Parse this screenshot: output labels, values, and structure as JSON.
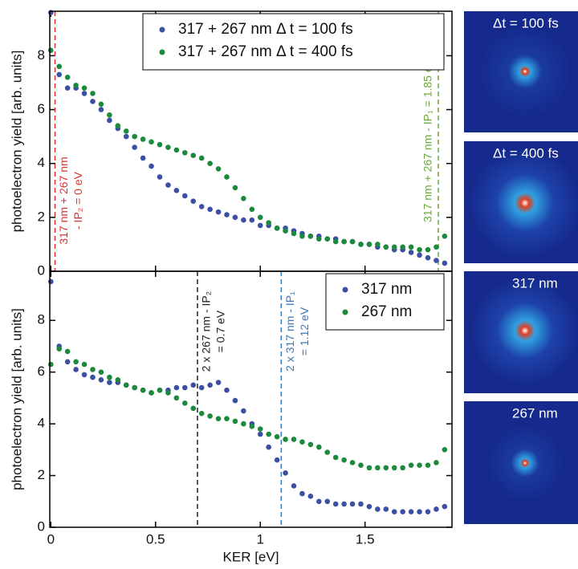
{
  "chart_data": [
    {
      "type": "scatter",
      "ylabel": "photoelectron yield [arb. units]",
      "xlim": [
        -0.005,
        1.915
      ],
      "ylim": [
        0,
        9.65
      ],
      "xticks": [
        0,
        0.5,
        1,
        1.5
      ],
      "yticks": [
        0,
        2,
        4,
        6,
        8
      ],
      "show_xtick_labels": false,
      "legend": "top-right",
      "x": [
        0,
        0.04,
        0.08,
        0.12,
        0.16,
        0.2,
        0.24,
        0.28,
        0.32,
        0.36,
        0.4,
        0.44,
        0.48,
        0.52,
        0.56,
        0.6,
        0.64,
        0.68,
        0.72,
        0.76,
        0.8,
        0.84,
        0.88,
        0.92,
        0.96,
        1.0,
        1.04,
        1.08,
        1.12,
        1.16,
        1.2,
        1.24,
        1.28,
        1.32,
        1.36,
        1.4,
        1.44,
        1.48,
        1.52,
        1.56,
        1.6,
        1.64,
        1.68,
        1.72,
        1.76,
        1.8,
        1.84,
        1.88
      ],
      "series": [
        {
          "name": "317 + 267 nm Δ t = 100 fs",
          "color": "#3b4fa3",
          "values": [
            9.6,
            7.3,
            6.8,
            6.8,
            6.6,
            6.3,
            6.0,
            5.6,
            5.3,
            5.0,
            4.6,
            4.2,
            3.9,
            3.5,
            3.2,
            3.0,
            2.8,
            2.6,
            2.4,
            2.3,
            2.2,
            2.1,
            2.0,
            1.9,
            1.9,
            1.7,
            1.7,
            1.6,
            1.6,
            1.5,
            1.4,
            1.3,
            1.3,
            1.2,
            1.2,
            1.1,
            1.1,
            1.0,
            1.0,
            0.9,
            0.9,
            0.8,
            0.8,
            0.7,
            0.6,
            0.5,
            0.4,
            0.3
          ]
        },
        {
          "name": "317 + 267 nm Δ t = 400 fs",
          "color": "#1c8a3c",
          "values": [
            8.2,
            7.6,
            7.2,
            6.9,
            6.8,
            6.6,
            6.2,
            5.8,
            5.4,
            5.2,
            5.0,
            4.9,
            4.8,
            4.7,
            4.6,
            4.5,
            4.4,
            4.3,
            4.2,
            4.0,
            3.8,
            3.5,
            3.1,
            2.7,
            2.3,
            2.0,
            1.8,
            1.6,
            1.5,
            1.4,
            1.3,
            1.3,
            1.2,
            1.2,
            1.1,
            1.1,
            1.1,
            1.0,
            1.0,
            1.0,
            0.9,
            0.9,
            0.9,
            0.9,
            0.8,
            0.8,
            0.9,
            1.3
          ]
        }
      ],
      "vlines": [
        {
          "x": 0.02,
          "color": "#e0302f",
          "side": "right",
          "label": [
            "317 nm + 267 nm",
            "- IP₂ = 0 eV"
          ]
        },
        {
          "x": 1.85,
          "color": "#6aa83a",
          "side": "left",
          "label": [
            "317 nm + 267 nm - IP₁ = 1.85 eV"
          ]
        }
      ]
    },
    {
      "type": "scatter",
      "ylabel": "photoelectron yield [arb. units]",
      "xlabel": "KER [eV]",
      "xlim": [
        -0.005,
        1.915
      ],
      "ylim": [
        0,
        9.9
      ],
      "xticks": [
        0,
        0.5,
        1,
        1.5
      ],
      "yticks": [
        0,
        2,
        4,
        6,
        8
      ],
      "show_xtick_labels": true,
      "legend": "top-right",
      "x": [
        0,
        0.04,
        0.08,
        0.12,
        0.16,
        0.2,
        0.24,
        0.28,
        0.32,
        0.36,
        0.4,
        0.44,
        0.48,
        0.52,
        0.56,
        0.6,
        0.64,
        0.68,
        0.72,
        0.76,
        0.8,
        0.84,
        0.88,
        0.92,
        0.96,
        1.0,
        1.04,
        1.08,
        1.12,
        1.16,
        1.2,
        1.24,
        1.28,
        1.32,
        1.36,
        1.4,
        1.44,
        1.48,
        1.52,
        1.56,
        1.6,
        1.64,
        1.68,
        1.72,
        1.76,
        1.8,
        1.84,
        1.88
      ],
      "series": [
        {
          "name": "317 nm",
          "color": "#3b4fa3",
          "values": [
            9.5,
            7.0,
            6.4,
            6.1,
            5.9,
            5.8,
            5.7,
            5.6,
            5.6,
            5.5,
            5.4,
            5.3,
            5.2,
            5.3,
            5.3,
            5.4,
            5.4,
            5.5,
            5.4,
            5.5,
            5.6,
            5.3,
            4.9,
            4.5,
            4.0,
            3.6,
            3.1,
            2.6,
            2.1,
            1.6,
            1.3,
            1.2,
            1.0,
            1.0,
            0.9,
            0.9,
            0.9,
            0.9,
            0.8,
            0.7,
            0.7,
            0.6,
            0.6,
            0.6,
            0.6,
            0.6,
            0.7,
            0.8
          ]
        },
        {
          "name": "267 nm",
          "color": "#1c8a3c",
          "values": [
            6.3,
            6.9,
            6.8,
            6.4,
            6.3,
            6.1,
            6.0,
            5.8,
            5.7,
            5.5,
            5.4,
            5.3,
            5.2,
            5.3,
            5.2,
            5.0,
            4.8,
            4.6,
            4.4,
            4.3,
            4.2,
            4.2,
            4.1,
            4.0,
            3.9,
            3.8,
            3.6,
            3.5,
            3.4,
            3.4,
            3.3,
            3.2,
            3.1,
            2.9,
            2.7,
            2.6,
            2.5,
            2.4,
            2.3,
            2.3,
            2.3,
            2.3,
            2.3,
            2.4,
            2.4,
            2.4,
            2.5,
            3.0
          ]
        }
      ],
      "vlines": [
        {
          "x": 0.7,
          "color": "#222222",
          "side": "right",
          "label": [
            "2 x 267 nm - IP₂",
            "= 0.7 eV"
          ]
        },
        {
          "x": 1.1,
          "color": "#3a78b8",
          "side": "right",
          "label": [
            "2 x 317 nm - IP₁",
            "= 1.12 eV"
          ]
        }
      ]
    }
  ],
  "images": [
    {
      "label": "Δt = 100 fs"
    },
    {
      "label": "Δt = 400 fs"
    },
    {
      "label": "317 nm"
    },
    {
      "label": "267 nm"
    }
  ]
}
